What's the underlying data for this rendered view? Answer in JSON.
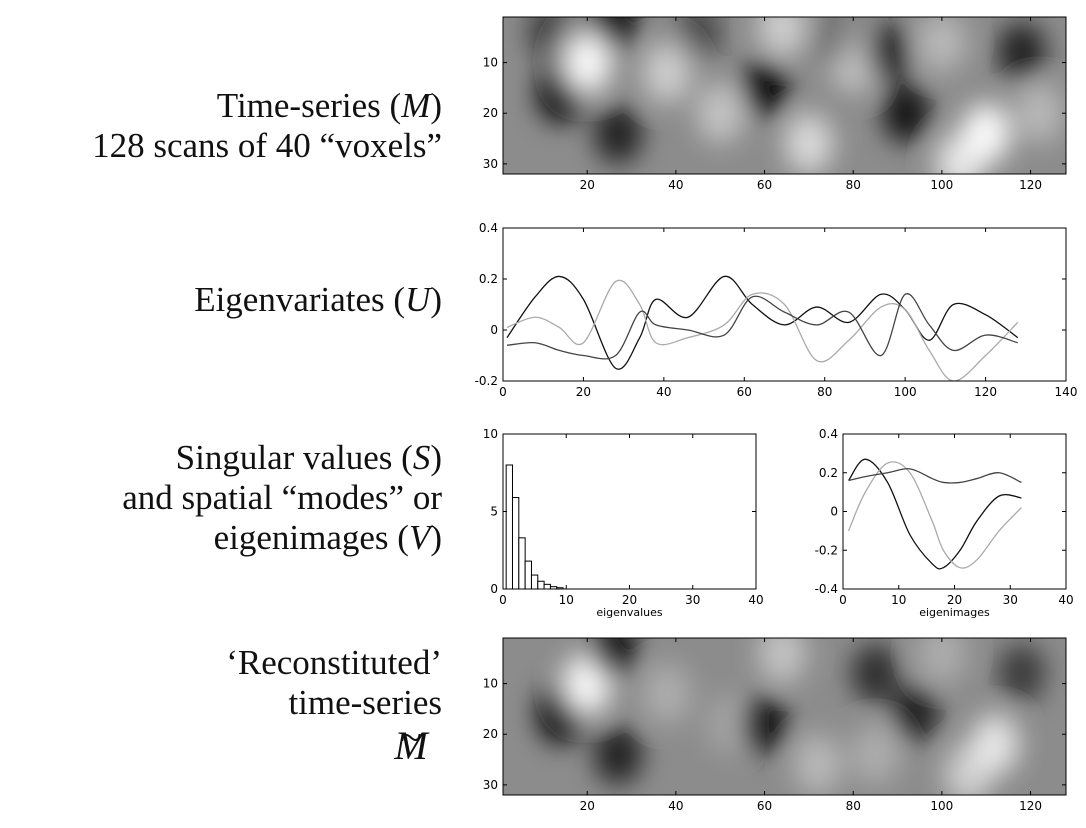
{
  "labels": {
    "timeseries": {
      "line1_pre": "Time-series (",
      "line1_sym": "M",
      "line1_post": ")",
      "line2": "128 scans of 40 “voxels”"
    },
    "eigenvariates": {
      "pre": "Eigenvariates (",
      "sym": "U",
      "post": ")"
    },
    "singular": {
      "line1_pre": "Singular values (",
      "line1_sym": "S",
      "line1_post": ")",
      "line2": "and spatial “modes” or",
      "line3_pre": "eigenimages (",
      "line3_sym": "V",
      "line3_post": ")"
    },
    "reconstituted": {
      "line1": "‘Reconstituted’",
      "line2": "time-series",
      "symbol": "M"
    }
  },
  "chart_data": [
    {
      "type": "heatmap",
      "colormap": "gray",
      "xlim": [
        1,
        128
      ],
      "ylim": [
        1,
        32
      ],
      "xticks": [
        "20",
        "40",
        "60",
        "80",
        "100",
        "120"
      ],
      "yticks": [
        "10",
        "20",
        "30"
      ],
      "blobs": [
        [
          12,
          4,
          -0.6
        ],
        [
          26,
          2,
          -1.0
        ],
        [
          14,
          16,
          -1.0
        ],
        [
          20,
          10,
          1.0
        ],
        [
          27,
          24,
          -0.8
        ],
        [
          38,
          12,
          0.6
        ],
        [
          45,
          4,
          -0.5
        ],
        [
          50,
          20,
          0.5
        ],
        [
          60,
          15,
          -1.0
        ],
        [
          64,
          3,
          0.6
        ],
        [
          70,
          26,
          0.7
        ],
        [
          80,
          10,
          0.5
        ],
        [
          88,
          8,
          -0.8
        ],
        [
          92,
          20,
          -0.9
        ],
        [
          100,
          6,
          0.4
        ],
        [
          104,
          30,
          0.8
        ],
        [
          110,
          24,
          1.0
        ],
        [
          118,
          8,
          -0.8
        ],
        [
          122,
          20,
          0.4
        ],
        [
          75,
          5,
          -0.3
        ]
      ]
    },
    {
      "type": "line",
      "xlim": [
        0,
        140
      ],
      "ylim": [
        -0.2,
        0.4
      ],
      "xticks": [
        "0",
        "20",
        "40",
        "60",
        "80",
        "100",
        "120",
        "140"
      ],
      "yticks": [
        "-0.2",
        "0",
        "0.2",
        "0.4"
      ],
      "x": [
        1,
        8,
        14,
        20,
        28,
        34,
        38,
        46,
        55,
        62,
        70,
        78,
        86,
        94,
        100,
        106,
        112,
        120,
        128
      ],
      "series": [
        {
          "color": "#111111",
          "values": [
            -0.03,
            0.13,
            0.21,
            0.12,
            -0.15,
            -0.03,
            0.12,
            0.05,
            0.21,
            0.1,
            0.02,
            0.09,
            0.03,
            0.14,
            0.08,
            -0.04,
            0.1,
            0.06,
            -0.03
          ]
        },
        {
          "color": "#aaaaaa",
          "values": [
            0.01,
            0.05,
            0.01,
            -0.05,
            0.19,
            0.1,
            -0.05,
            -0.03,
            0.02,
            0.14,
            0.1,
            -0.12,
            -0.04,
            0.09,
            0.08,
            -0.08,
            -0.2,
            -0.1,
            0.03
          ]
        },
        {
          "color": "#444444",
          "values": [
            -0.06,
            -0.05,
            -0.08,
            -0.1,
            -0.1,
            0.07,
            0.02,
            0.0,
            -0.02,
            0.13,
            0.07,
            0.02,
            0.07,
            -0.1,
            0.14,
            0.02,
            -0.08,
            -0.02,
            -0.05
          ]
        }
      ]
    },
    {
      "type": "bar",
      "xlabel": "eigenvalues",
      "xlim": [
        0,
        40
      ],
      "ylim": [
        0,
        10
      ],
      "xticks": [
        "0",
        "10",
        "20",
        "30",
        "40"
      ],
      "yticks": [
        "0",
        "5",
        "10"
      ],
      "x": [
        1,
        2,
        3,
        4,
        5,
        6,
        7,
        8,
        9
      ],
      "values": [
        8.0,
        5.9,
        3.3,
        1.8,
        0.9,
        0.5,
        0.3,
        0.15,
        0.08
      ]
    },
    {
      "type": "line",
      "xlabel": "eigenimages",
      "xlim": [
        0,
        40
      ],
      "ylim": [
        -0.4,
        0.4
      ],
      "xticks": [
        "0",
        "10",
        "20",
        "30",
        "40"
      ],
      "yticks": [
        "-0.4",
        "-0.2",
        "0",
        "0.2",
        "0.4"
      ],
      "x": [
        1,
        4,
        8,
        12,
        16,
        18,
        21,
        24,
        28,
        32
      ],
      "series": [
        {
          "color": "#111111",
          "values": [
            0.16,
            0.27,
            0.15,
            -0.12,
            -0.27,
            -0.29,
            -0.2,
            -0.05,
            0.08,
            0.07
          ]
        },
        {
          "color": "#aaaaaa",
          "values": [
            -0.1,
            0.1,
            0.25,
            0.2,
            -0.05,
            -0.2,
            -0.29,
            -0.25,
            -0.1,
            0.02
          ]
        },
        {
          "color": "#444444",
          "values": [
            0.16,
            0.18,
            0.2,
            0.22,
            0.17,
            0.15,
            0.15,
            0.17,
            0.2,
            0.15
          ]
        }
      ]
    },
    {
      "type": "heatmap",
      "colormap": "gray",
      "xlim": [
        1,
        128
      ],
      "ylim": [
        1,
        32
      ],
      "xticks": [
        "20",
        "40",
        "60",
        "80",
        "100",
        "120"
      ],
      "yticks": [
        "10",
        "20",
        "30"
      ],
      "blobs": [
        [
          14,
          16,
          -1.0
        ],
        [
          20,
          10,
          1.0
        ],
        [
          26,
          3,
          -0.9
        ],
        [
          27,
          24,
          -0.8
        ],
        [
          38,
          12,
          0.3
        ],
        [
          52,
          18,
          0.2
        ],
        [
          60,
          18,
          -0.9
        ],
        [
          64,
          4,
          0.5
        ],
        [
          72,
          26,
          0.4
        ],
        [
          85,
          8,
          -0.7
        ],
        [
          94,
          16,
          -0.8
        ],
        [
          100,
          4,
          0.3
        ],
        [
          106,
          28,
          0.6
        ],
        [
          112,
          22,
          0.8
        ],
        [
          118,
          8,
          -0.6
        ],
        [
          85,
          24,
          0.3
        ]
      ]
    }
  ]
}
